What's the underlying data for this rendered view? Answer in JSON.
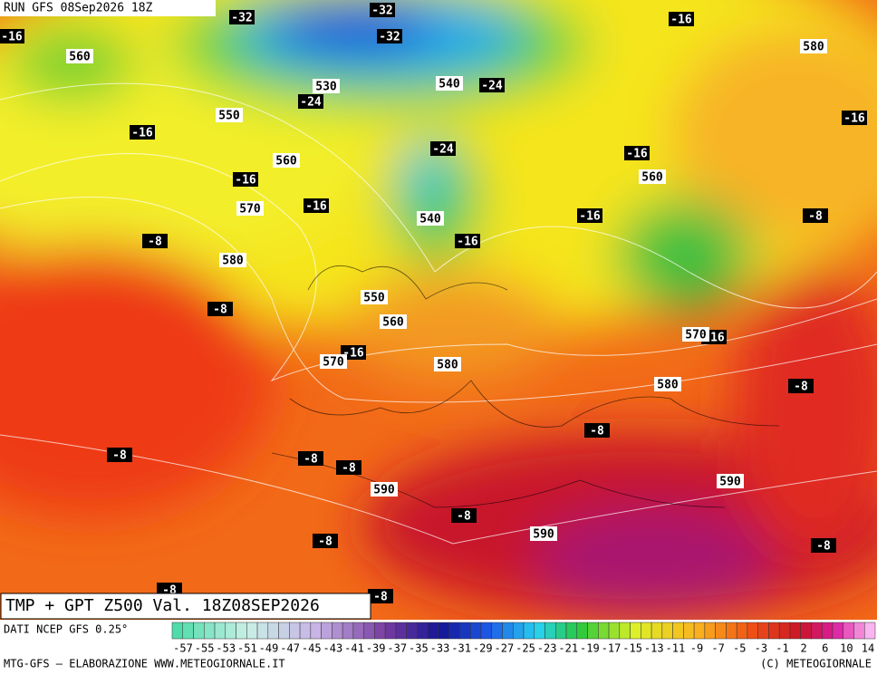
{
  "header": {
    "run": "RUN GFS 08Sep2026 18Z"
  },
  "map": {
    "temperature_labels": [
      "-32",
      "-32",
      "-32",
      "-16",
      "-16",
      "-24",
      "-24",
      "-16",
      "-16",
      "-24",
      "-16",
      "-16",
      "-16",
      "-16",
      "-8",
      "-8",
      "-16",
      "-8",
      "-16",
      "-16",
      "-8",
      "-8",
      "-8",
      "-8",
      "-8",
      "-8",
      "-8",
      "-8",
      "-8",
      "-8"
    ],
    "height_labels": [
      "560",
      "530",
      "540",
      "550",
      "560",
      "580",
      "560",
      "570",
      "540",
      "580",
      "550",
      "560",
      "570",
      "580",
      "570",
      "580",
      "590",
      "590",
      "590"
    ]
  },
  "footer": {
    "title": "TMP + GPT Z500 Val. 18Z08SEP2026",
    "source": "DATI NCEP GFS 0.25°",
    "credit": "MTG-GFS — ELABORAZIONE WWW.METEOGIORNALE.IT",
    "copyright": "(C) METEOGIORNALE"
  },
  "legend": {
    "ticks": [
      -57,
      -55,
      -53,
      -51,
      -49,
      -47,
      -45,
      -43,
      -41,
      -39,
      -37,
      -35,
      -33,
      -31,
      -29,
      -27,
      -25,
      -23,
      -21,
      -19,
      -17,
      -15,
      -13,
      -11,
      -9,
      -7,
      -5,
      -3,
      -1,
      2,
      6,
      10,
      14
    ]
  }
}
